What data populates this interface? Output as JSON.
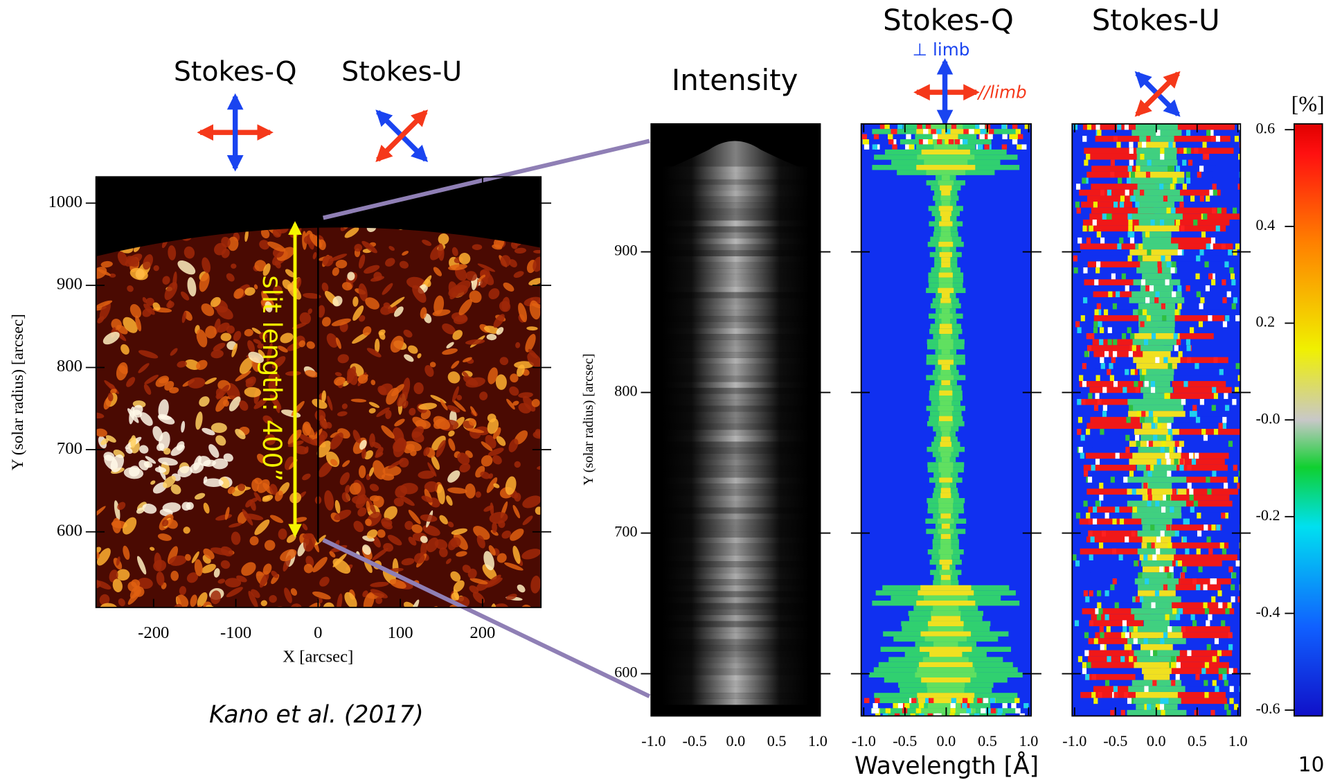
{
  "left": {
    "title_q": "Stokes-Q",
    "title_u": "Stokes-U",
    "ylabel": "Y (solar radius) [arcsec]",
    "xlabel": "X [arcsec]",
    "xlim": [
      -270,
      271
    ],
    "ylim": [
      508,
      1032
    ],
    "xticks": [
      -200,
      -100,
      0,
      100,
      200
    ],
    "yticks": [
      600,
      700,
      800,
      900,
      1000
    ],
    "slit_label": "slit length: 400”",
    "credit": "Kano et al. (2017)"
  },
  "panels": [
    {
      "title": "Intensity",
      "ylabel": "Y (solar radius) [arcsec]"
    },
    {
      "title": "Stokes-Q",
      "perp_label": "⊥ limb",
      "par_label": "//limb"
    },
    {
      "title": "Stokes-U"
    }
  ],
  "spectra_axes": {
    "xlim": [
      -1.03,
      1.03
    ],
    "ylim": [
      570,
      991
    ],
    "xticks": [
      {
        "value": -1,
        "label": "-1.0"
      },
      -0.5,
      {
        "value": 0,
        "label": "0.0"
      },
      0.5,
      {
        "value": 1,
        "label": "1.0"
      }
    ],
    "yticks": [
      600,
      700,
      800,
      900
    ],
    "xlabel": "Wavelength [Å]"
  },
  "colorbar": {
    "unit": "[%]",
    "ylim": [
      -0.612,
      0.612
    ],
    "yticks": [
      0.6,
      0.4,
      0.2,
      {
        "value": 0,
        "label": "-0.0"
      },
      -0.2,
      -0.4,
      -0.6
    ]
  },
  "page_number": "10"
}
